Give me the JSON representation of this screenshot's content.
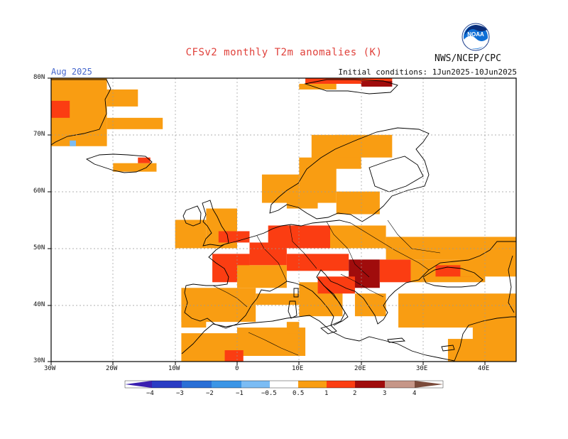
{
  "header": {
    "title": "CFSv2 monthly T2m anomalies (K)",
    "period": "Aug 2025",
    "initial_conditions": "Initial conditions: 1Jun2025-10Jun2025",
    "agency": "NWS/NCEP/CPC",
    "logo_text": "NOAA"
  },
  "axes": {
    "lat_labels": [
      "80N",
      "70N",
      "60N",
      "50N",
      "40N",
      "30N"
    ],
    "lon_labels": [
      "30W",
      "20W",
      "10W",
      "0",
      "10E",
      "20E",
      "30E",
      "40E"
    ]
  },
  "colorbar": {
    "labels": [
      "−4",
      "−3",
      "−2",
      "−1",
      "−0.5",
      "0.5",
      "1",
      "2",
      "3",
      "4"
    ],
    "colors": [
      "#3a1fb0",
      "#2a55c8",
      "#3b8be0",
      "#5ba8ee",
      "#8cc8f7",
      "#ffffff",
      "#f99d12",
      "#fb3d12",
      "#a00c0c",
      "#c69688",
      "#7a4a3a"
    ]
  },
  "map_data": {
    "extent": {
      "lon": [
        -30,
        45
      ],
      "lat": [
        30,
        80
      ]
    },
    "categories": {
      "o": "0.5 to 1",
      "r": "1 to 2",
      "d": "2 to 3",
      "b": "-1 to -0.5"
    }
  }
}
